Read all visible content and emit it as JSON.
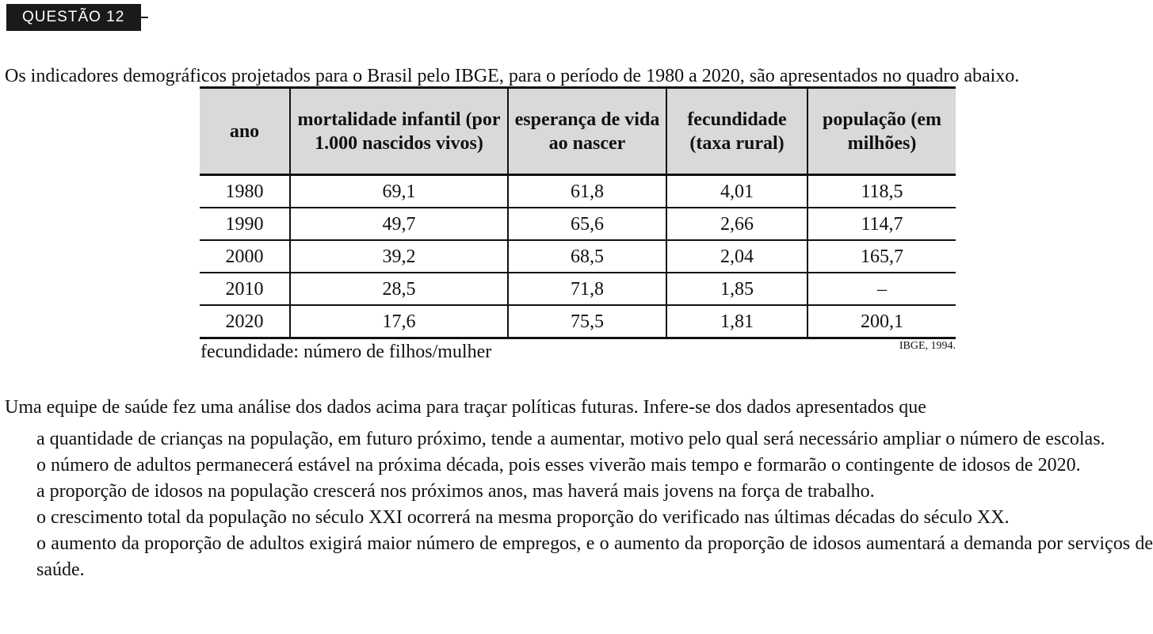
{
  "question": {
    "label": "QUESTÃO 12"
  },
  "intro": "Os indicadores demográficos projetados para o Brasil pelo IBGE, para o período de 1980 a 2020, são apresentados no quadro abaixo.",
  "table": {
    "headers": [
      "ano",
      "mortalidade infantil (por 1.000 nascidos vivos)",
      "esperança de vida ao nascer",
      "fecundidade (taxa rural)",
      "população (em milhões)"
    ],
    "rows": [
      [
        "1980",
        "69,1",
        "61,8",
        "4,01",
        "118,5"
      ],
      [
        "1990",
        "49,7",
        "65,6",
        "2,66",
        "114,7"
      ],
      [
        "2000",
        "39,2",
        "68,5",
        "2,04",
        "165,7"
      ],
      [
        "2010",
        "28,5",
        "71,8",
        "1,85",
        "–"
      ],
      [
        "2020",
        "17,6",
        "75,5",
        "1,81",
        "200,1"
      ]
    ],
    "footnote": "fecundidade: número de filhos/mulher",
    "source": "IBGE, 1994."
  },
  "prompt": "Uma equipe de saúde fez uma análise dos dados acima para traçar políticas futuras. Infere-se dos dados apresentados que",
  "options": [
    "a quantidade de crianças na população, em futuro próximo, tende a aumentar, motivo pelo qual será necessário ampliar o número de escolas.",
    "o número de adultos permanecerá estável na próxima década, pois esses viverão mais tempo e formarão o contingente de idosos de 2020.",
    "a proporção de idosos na população crescerá nos próximos anos, mas haverá mais jovens na força de trabalho.",
    "o crescimento total da população no século XXI ocorrerá na mesma proporção do verificado nas últimas décadas do século XX.",
    "o aumento da proporção de adultos exigirá maior número de empregos, e o aumento da proporção de idosos aumentará a demanda por serviços de saúde."
  ]
}
